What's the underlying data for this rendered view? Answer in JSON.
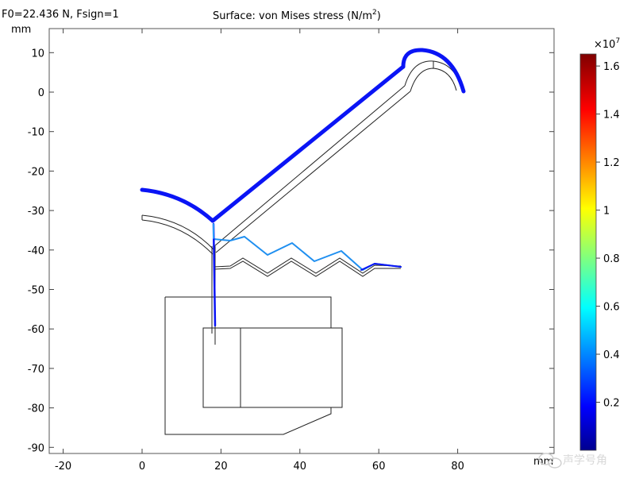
{
  "header": {
    "params_label": "F0=22.436 N, Fsign=1",
    "title_text": "Surface: von Mises stress (N/m",
    "title_sup": "2",
    "title_end": ")"
  },
  "axes": {
    "y_unit": "mm",
    "x_unit": "mm",
    "x_range": [
      -23,
      104
    ],
    "y_range": [
      -91,
      16
    ],
    "x_ticks": [
      "-20",
      "0",
      "20",
      "40",
      "60",
      "80"
    ],
    "y_ticks": [
      "10",
      "0",
      "-10",
      "-20",
      "-30",
      "-40",
      "-50",
      "-60",
      "-70",
      "-80",
      "-90"
    ]
  },
  "colorbar": {
    "scale_label": "×10",
    "scale_exp": "7",
    "min_value": 0,
    "max_value": 1.65,
    "ticks": [
      "1.6",
      "1.4",
      "1.2",
      "1",
      "0.8",
      "0.6",
      "0.4",
      "0.2"
    ],
    "colormap": [
      "#00008f",
      "#0000ff",
      "#00ffff",
      "#ffff00",
      "#ff0000",
      "#800000"
    ]
  },
  "watermark": {
    "text": "声学号角",
    "icon": "wechat-icon"
  }
}
